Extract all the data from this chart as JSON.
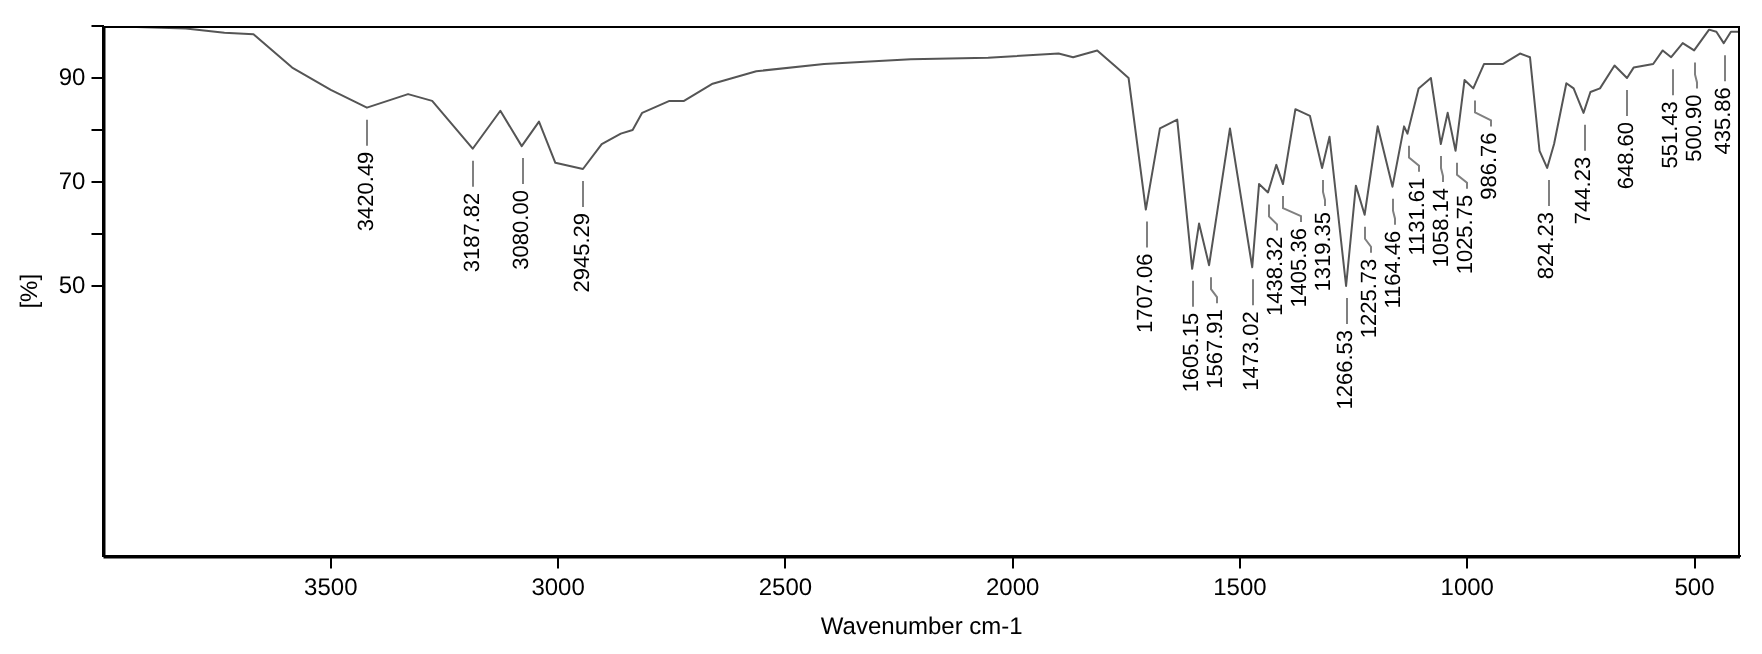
{
  "chart_data": {
    "type": "line",
    "xlabel": "Wavenumber cm-1",
    "ylabel": "[%]",
    "xlim": [
      4000,
      400
    ],
    "xticks": [
      3500,
      3000,
      2500,
      2000,
      1500,
      1000,
      500
    ],
    "ylim": [
      -2,
      100
    ],
    "yticks": [
      {
        "value": 100,
        "label": null
      },
      90,
      {
        "value": 80,
        "label": null
      },
      70,
      {
        "value": 60,
        "label": null
      },
      50
    ],
    "grid": false,
    "legend": false,
    "marker": "none",
    "line_style": "solid",
    "series": [
      {
        "color": "#555555",
        "x": [
          4000,
          3819,
          3734,
          3670,
          3585,
          3500,
          3420.49,
          3330,
          3277,
          3187.82,
          3127,
          3080,
          3042,
          3006,
          2945.29,
          2904,
          2862,
          2836,
          2815,
          2755,
          2723,
          2660,
          2564,
          2415,
          2224,
          2054,
          1899,
          1867,
          1814,
          1771,
          1745,
          1707.06,
          1676,
          1638,
          1605.15,
          1590,
          1567.91,
          1522,
          1473.02,
          1458,
          1438.32,
          1420,
          1405.36,
          1378,
          1346,
          1319.35,
          1303,
          1266.53,
          1245,
          1225.73,
          1197,
          1164.46,
          1139,
          1131.61,
          1107,
          1080,
          1058.14,
          1043,
          1025.75,
          1006,
          986.76,
          963,
          921,
          884,
          862,
          841,
          824.23,
          809,
          782,
          766,
          744.23,
          729,
          708,
          676,
          648.6,
          634,
          591,
          570,
          551.43,
          526,
          500.9,
          468,
          452,
          435.86,
          420,
          404
        ],
        "values": [
          100,
          99.5,
          98.7,
          98.4,
          92,
          87.7,
          84.3,
          86.9,
          85.6,
          76.4,
          83.7,
          76.9,
          81.6,
          73.7,
          72.5,
          77.3,
          79.3,
          80,
          83.3,
          85.6,
          85.6,
          88.9,
          91.3,
          92.7,
          93.6,
          93.9,
          94.7,
          94,
          95.3,
          92,
          90,
          64.7,
          80.3,
          82,
          53.3,
          62,
          54,
          80.3,
          53.6,
          69.6,
          68,
          73.3,
          69.6,
          84,
          82.7,
          72.7,
          78.7,
          50,
          69.3,
          63.7,
          80.7,
          69.1,
          80.7,
          79.3,
          88,
          90,
          77.3,
          83.3,
          76,
          89.6,
          88,
          92.7,
          92.7,
          94.7,
          94,
          76,
          72.7,
          77.3,
          89,
          88,
          83.3,
          87.3,
          88,
          92.4,
          90,
          92,
          92.7,
          95.3,
          94,
          96.7,
          95.3,
          99.3,
          98.9,
          96.7,
          98.9,
          98.9
        ]
      }
    ],
    "annotations": [
      {
        "text": "3420.49",
        "x": 3420.49,
        "y": 84.3
      },
      {
        "text": "3187.82",
        "x": 3187.82,
        "y": 76.4
      },
      {
        "text": "3080.00",
        "x": 3080,
        "y": 76.9
      },
      {
        "text": "2945.29",
        "x": 2945.29,
        "y": 72.5
      },
      {
        "text": "1707.06",
        "x": 1707.06,
        "y": 64.7
      },
      {
        "text": "1605.15",
        "x": 1605.15,
        "y": 53.3
      },
      {
        "text": "1567.91",
        "x": 1567.91,
        "y": 54
      },
      {
        "text": "1473.02",
        "x": 1473.02,
        "y": 53.6
      },
      {
        "text": "1438.32",
        "x": 1438.32,
        "y": 68
      },
      {
        "text": "1405.36",
        "x": 1405.36,
        "y": 69.6
      },
      {
        "text": "1319.35",
        "x": 1319.35,
        "y": 72.7
      },
      {
        "text": "1266.53",
        "x": 1266.53,
        "y": 50
      },
      {
        "text": "1225.73",
        "x": 1225.73,
        "y": 63.7
      },
      {
        "text": "1164.46",
        "x": 1164.46,
        "y": 69.1
      },
      {
        "text": "1131.61",
        "x": 1131.61,
        "y": 79.3
      },
      {
        "text": "1058.14",
        "x": 1058.14,
        "y": 77.3
      },
      {
        "text": "1025.75",
        "x": 1025.75,
        "y": 76
      },
      {
        "text": "986.76",
        "x": 986.76,
        "y": 88
      },
      {
        "text": "824.23",
        "x": 824.23,
        "y": 72.7
      },
      {
        "text": "744.23",
        "x": 744.23,
        "y": 83.3
      },
      {
        "text": "648.60",
        "x": 648.6,
        "y": 90
      },
      {
        "text": "551.43",
        "x": 551.43,
        "y": 94
      },
      {
        "text": "500.90",
        "x": 500.9,
        "y": 95.3
      },
      {
        "text": "435.86",
        "x": 435.86,
        "y": 96.7
      }
    ]
  }
}
